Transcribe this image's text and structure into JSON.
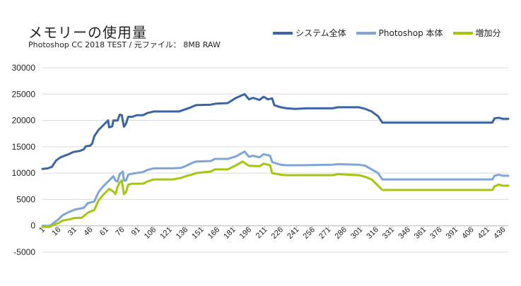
{
  "chart_data": {
    "type": "line",
    "title": "メモリーの使用量",
    "subtitle": "Photoshop CC 2018 TEST /  元ファイル： 8MB RAW",
    "ylim": [
      -5000,
      30000
    ],
    "yticks": [
      "30000",
      "25000",
      "20000",
      "15000",
      "10000",
      "5000",
      "0",
      "-5000"
    ],
    "xticks": [
      "1",
      "16",
      "31",
      "46",
      "61",
      "76",
      "91",
      "106",
      "121",
      "136",
      "151",
      "166",
      "181",
      "196",
      "211",
      "226",
      "241",
      "256",
      "271",
      "286",
      "301",
      "316",
      "331",
      "346",
      "361",
      "376",
      "391",
      "406",
      "421",
      "436"
    ],
    "x_range": [
      1,
      441
    ],
    "grid": true,
    "legend_position": "top-right",
    "series": [
      {
        "name": "システム全体",
        "color": "#3a64a4",
        "points": [
          [
            1,
            10800
          ],
          [
            6,
            10900
          ],
          [
            10,
            11200
          ],
          [
            14,
            12400
          ],
          [
            18,
            13000
          ],
          [
            22,
            13300
          ],
          [
            26,
            13600
          ],
          [
            30,
            14000
          ],
          [
            36,
            14200
          ],
          [
            40,
            14500
          ],
          [
            42,
            15100
          ],
          [
            46,
            15200
          ],
          [
            48,
            15600
          ],
          [
            50,
            17000
          ],
          [
            54,
            18200
          ],
          [
            58,
            19000
          ],
          [
            63,
            20000
          ],
          [
            64,
            18700
          ],
          [
            67,
            18900
          ],
          [
            68,
            20000
          ],
          [
            72,
            20000
          ],
          [
            74,
            21100
          ],
          [
            76,
            21000
          ],
          [
            78,
            18800
          ],
          [
            80,
            19400
          ],
          [
            82,
            20700
          ],
          [
            86,
            20700
          ],
          [
            90,
            21000
          ],
          [
            96,
            21000
          ],
          [
            100,
            21400
          ],
          [
            106,
            21700
          ],
          [
            130,
            21700
          ],
          [
            140,
            22400
          ],
          [
            146,
            22900
          ],
          [
            160,
            23000
          ],
          [
            165,
            23200
          ],
          [
            176,
            23300
          ],
          [
            183,
            24200
          ],
          [
            192,
            25000
          ],
          [
            196,
            24000
          ],
          [
            200,
            24300
          ],
          [
            206,
            23900
          ],
          [
            210,
            24500
          ],
          [
            214,
            24000
          ],
          [
            218,
            24200
          ],
          [
            220,
            22900
          ],
          [
            226,
            22500
          ],
          [
            232,
            22300
          ],
          [
            240,
            22200
          ],
          [
            250,
            22300
          ],
          [
            275,
            22300
          ],
          [
            280,
            22500
          ],
          [
            300,
            22500
          ],
          [
            306,
            22200
          ],
          [
            312,
            21700
          ],
          [
            318,
            20800
          ],
          [
            322,
            19600
          ],
          [
            400,
            19600
          ],
          [
            426,
            19600
          ],
          [
            428,
            20400
          ],
          [
            432,
            20500
          ],
          [
            436,
            20300
          ],
          [
            441,
            20300
          ]
        ]
      },
      {
        "name": "Photoshop 本体",
        "color": "#7ea6d6",
        "points": [
          [
            1,
            0
          ],
          [
            8,
            0
          ],
          [
            12,
            600
          ],
          [
            16,
            1200
          ],
          [
            20,
            2000
          ],
          [
            26,
            2600
          ],
          [
            32,
            3100
          ],
          [
            40,
            3400
          ],
          [
            44,
            4300
          ],
          [
            50,
            4600
          ],
          [
            54,
            6400
          ],
          [
            58,
            7400
          ],
          [
            64,
            8600
          ],
          [
            68,
            9400
          ],
          [
            70,
            8600
          ],
          [
            72,
            8400
          ],
          [
            74,
            9800
          ],
          [
            77,
            10300
          ],
          [
            78,
            8600
          ],
          [
            80,
            8600
          ],
          [
            82,
            9700
          ],
          [
            86,
            9900
          ],
          [
            96,
            10200
          ],
          [
            100,
            10600
          ],
          [
            106,
            10900
          ],
          [
            124,
            10900
          ],
          [
            132,
            11000
          ],
          [
            136,
            11300
          ],
          [
            142,
            11900
          ],
          [
            146,
            12200
          ],
          [
            160,
            12300
          ],
          [
            164,
            12700
          ],
          [
            176,
            12700
          ],
          [
            184,
            13200
          ],
          [
            192,
            14100
          ],
          [
            196,
            13100
          ],
          [
            200,
            13300
          ],
          [
            206,
            13000
          ],
          [
            210,
            13600
          ],
          [
            216,
            13300
          ],
          [
            218,
            12100
          ],
          [
            226,
            11600
          ],
          [
            232,
            11500
          ],
          [
            245,
            11500
          ],
          [
            275,
            11600
          ],
          [
            280,
            11700
          ],
          [
            300,
            11600
          ],
          [
            306,
            11400
          ],
          [
            312,
            10700
          ],
          [
            318,
            10000
          ],
          [
            322,
            8800
          ],
          [
            400,
            8800
          ],
          [
            426,
            8800
          ],
          [
            428,
            9500
          ],
          [
            432,
            9700
          ],
          [
            436,
            9500
          ],
          [
            441,
            9500
          ]
        ]
      },
      {
        "name": "増加分",
        "color": "#a6c60e",
        "points": [
          [
            1,
            -200
          ],
          [
            8,
            -200
          ],
          [
            12,
            200
          ],
          [
            16,
            500
          ],
          [
            20,
            1000
          ],
          [
            26,
            1200
          ],
          [
            32,
            1500
          ],
          [
            38,
            1500
          ],
          [
            44,
            2500
          ],
          [
            50,
            3000
          ],
          [
            54,
            4800
          ],
          [
            58,
            5800
          ],
          [
            64,
            7000
          ],
          [
            68,
            6500
          ],
          [
            70,
            6000
          ],
          [
            72,
            7400
          ],
          [
            74,
            8200
          ],
          [
            76,
            8600
          ],
          [
            78,
            6000
          ],
          [
            80,
            6400
          ],
          [
            82,
            7800
          ],
          [
            86,
            8000
          ],
          [
            96,
            8000
          ],
          [
            100,
            8400
          ],
          [
            106,
            8800
          ],
          [
            124,
            8800
          ],
          [
            132,
            9100
          ],
          [
            136,
            9400
          ],
          [
            142,
            9700
          ],
          [
            146,
            10000
          ],
          [
            160,
            10300
          ],
          [
            164,
            10700
          ],
          [
            176,
            10700
          ],
          [
            184,
            11500
          ],
          [
            190,
            12200
          ],
          [
            196,
            11400
          ],
          [
            206,
            11300
          ],
          [
            210,
            11800
          ],
          [
            216,
            11500
          ],
          [
            218,
            10000
          ],
          [
            226,
            9700
          ],
          [
            232,
            9600
          ],
          [
            250,
            9600
          ],
          [
            275,
            9600
          ],
          [
            280,
            9800
          ],
          [
            300,
            9600
          ],
          [
            306,
            9300
          ],
          [
            312,
            8800
          ],
          [
            318,
            7600
          ],
          [
            322,
            6800
          ],
          [
            330,
            6800
          ],
          [
            400,
            6800
          ],
          [
            426,
            6800
          ],
          [
            428,
            7500
          ],
          [
            432,
            7800
          ],
          [
            436,
            7600
          ],
          [
            441,
            7600
          ]
        ]
      }
    ]
  }
}
